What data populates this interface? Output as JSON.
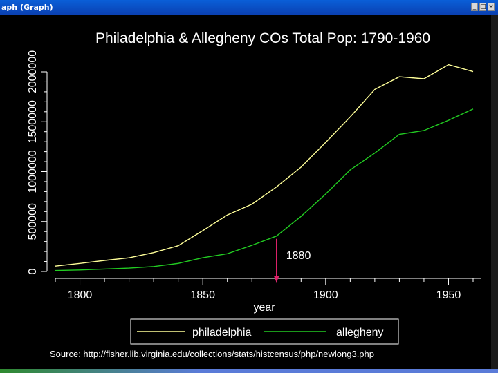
{
  "window": {
    "title": "aph (Graph)"
  },
  "source_text": "Source: http://fisher.lib.virginia.edu/collections/stats/histcensus/php/newlong3.php",
  "annotation": {
    "label": "1880",
    "x": 1880,
    "arrow_color": "#e0206a"
  },
  "colors": {
    "philadelphia": "#ffff99",
    "allegheny": "#22cc22",
    "background": "#000000",
    "axis": "#ffffff"
  },
  "chart_data": {
    "type": "line",
    "title": "Philadelphia & Allegheny COs Total Pop: 1790-1960",
    "xlabel": "year",
    "ylabel": "",
    "xlim": [
      1790,
      1960
    ],
    "ylim": [
      0,
      2000000
    ],
    "xticks": [
      1800,
      1850,
      1900,
      1950
    ],
    "yticks": [
      0,
      500000,
      1000000,
      1500000,
      2000000
    ],
    "legend_position": "bottom",
    "x": [
      1790,
      1800,
      1810,
      1820,
      1830,
      1840,
      1850,
      1860,
      1870,
      1880,
      1890,
      1900,
      1910,
      1920,
      1930,
      1940,
      1950,
      1960
    ],
    "series": [
      {
        "name": "philadelphia",
        "color": "#ffff99",
        "values": [
          54000,
          81000,
          111000,
          137000,
          189000,
          258000,
          409000,
          566000,
          674000,
          847000,
          1046000,
          1293000,
          1549000,
          1824000,
          1951000,
          1931000,
          2072000,
          2003000
        ]
      },
      {
        "name": "allegheny",
        "color": "#22cc22",
        "values": [
          10000,
          15000,
          25000,
          34000,
          50000,
          81000,
          138000,
          178000,
          262000,
          355000,
          552000,
          775000,
          1018000,
          1186000,
          1374000,
          1412000,
          1515000,
          1628000
        ]
      }
    ]
  }
}
